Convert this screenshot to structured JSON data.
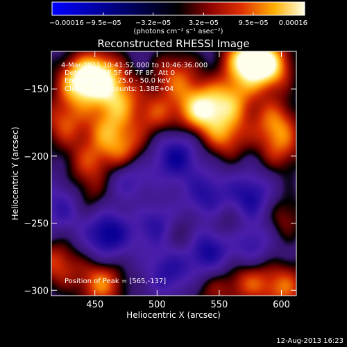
{
  "chart_data": {
    "type": "heatmap",
    "title": "Reconstructed RHESSI Image",
    "xlabel": "Heliocentric X (arcsec)",
    "ylabel": "Heliocentric Y (arcsec)",
    "xlim": [
      415,
      612
    ],
    "ylim": [
      -304,
      -122
    ],
    "x_ticks": [
      450,
      500,
      550,
      600
    ],
    "y_ticks": [
      -150,
      -200,
      -250,
      -300
    ],
    "x_tick_labels": [
      "450",
      "500",
      "550",
      "600"
    ],
    "y_tick_labels": [
      "−150",
      "−200",
      "−250",
      "−300"
    ],
    "colorbar": {
      "min": -0.00016,
      "max": 0.00016,
      "tick_values": [
        -0.00016,
        -9.5e-05,
        -3.2e-05,
        3.2e-05,
        9.5e-05,
        0.00016
      ],
      "tick_labels": [
        "−0.00016",
        "−9.5e−05",
        "−3.2e−05",
        "3.2e−05",
        "9.5e−05",
        "0.00016"
      ],
      "units": "(photons cm⁻² s⁻¹ asec⁻²)"
    },
    "annotations": {
      "time_range": "4-Mar-2011 10:41:52.000 to 10:46:36.000",
      "detectors": "Detectors: 4F 5F 6F 7F 8F, Att 0",
      "energy": "Energy Range: 25.0 - 50.0 keV",
      "clean": "Clean    Total counts: 1.38E+04",
      "peak": "Position of Peak = [565,-137]"
    },
    "blobs": [
      {
        "x": 438,
        "y": -145,
        "v": 0.9
      },
      {
        "x": 455,
        "y": -140,
        "v": 0.8
      },
      {
        "x": 470,
        "y": -158,
        "v": 0.6
      },
      {
        "x": 425,
        "y": -175,
        "v": 0.55
      },
      {
        "x": 460,
        "y": -180,
        "v": 0.55
      },
      {
        "x": 475,
        "y": -198,
        "v": 0.6
      },
      {
        "x": 445,
        "y": -205,
        "v": 0.45
      },
      {
        "x": 500,
        "y": -170,
        "v": 0.5
      },
      {
        "x": 515,
        "y": -140,
        "v": 0.55
      },
      {
        "x": 535,
        "y": -165,
        "v": 0.95
      },
      {
        "x": 560,
        "y": -158,
        "v": 0.65
      },
      {
        "x": 572,
        "y": -128,
        "v": 1.0
      },
      {
        "x": 590,
        "y": -133,
        "v": 0.9
      },
      {
        "x": 555,
        "y": -185,
        "v": 0.6
      },
      {
        "x": 595,
        "y": -175,
        "v": 0.6
      },
      {
        "x": 600,
        "y": -195,
        "v": 0.45
      },
      {
        "x": 515,
        "y": -200,
        "v": -0.7
      },
      {
        "x": 480,
        "y": -218,
        "v": -0.65
      },
      {
        "x": 540,
        "y": -230,
        "v": -0.55
      },
      {
        "x": 575,
        "y": -232,
        "v": -0.7
      },
      {
        "x": 460,
        "y": -258,
        "v": -0.8
      },
      {
        "x": 500,
        "y": -250,
        "v": -0.6
      },
      {
        "x": 540,
        "y": -270,
        "v": -0.75
      },
      {
        "x": 510,
        "y": -285,
        "v": -0.55
      },
      {
        "x": 575,
        "y": -265,
        "v": -0.55
      },
      {
        "x": 425,
        "y": -238,
        "v": -0.5
      },
      {
        "x": 445,
        "y": -232,
        "v": 0.35
      },
      {
        "x": 488,
        "y": -232,
        "v": 0.3
      },
      {
        "x": 560,
        "y": -250,
        "v": 0.4
      },
      {
        "x": 600,
        "y": -245,
        "v": 0.4
      },
      {
        "x": 420,
        "y": -280,
        "v": 0.55
      },
      {
        "x": 455,
        "y": -295,
        "v": 0.7
      },
      {
        "x": 520,
        "y": -260,
        "v": 0.4
      },
      {
        "x": 575,
        "y": -293,
        "v": 0.55
      },
      {
        "x": 603,
        "y": -298,
        "v": 0.6
      },
      {
        "x": 545,
        "y": -300,
        "v": 0.35
      }
    ]
  },
  "footer": {
    "date_stamp": "12-Aug-2013 16:23"
  }
}
